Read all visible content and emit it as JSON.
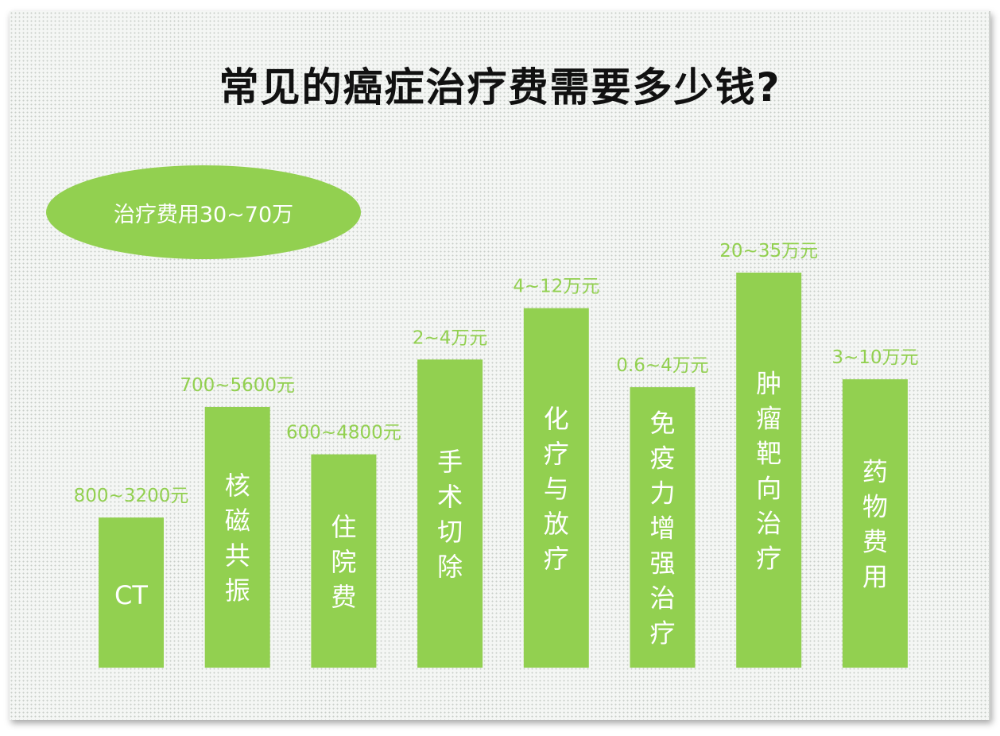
{
  "title": "常见的癌症治疗费需要多少钱?",
  "badge": "治疗费用30~70万",
  "colors": {
    "bar": "#92d050",
    "value_label": "#92d050",
    "bar_text": "#ffffff",
    "badge": "#92d050",
    "title": "#111111"
  },
  "chart_data": {
    "type": "bar",
    "title": "常见的癌症治疗费需要多少钱?",
    "categories": [
      "CT",
      "核磁共振",
      "住院费",
      "手术切除",
      "化疗与放疗",
      "免疫力增强治疗",
      "肿瘤靶向治疗",
      "药物费用"
    ],
    "value_labels": [
      "800~3200元",
      "700~5600元",
      "600~4800元",
      "2~4万元",
      "4~12万元",
      "0.6~4万元",
      "20~35万元",
      "3~10万元"
    ],
    "relative_heights": [
      0.38,
      0.66,
      0.54,
      0.78,
      0.91,
      0.71,
      1.0,
      0.73
    ],
    "xlabel": "",
    "ylabel": "",
    "grid": false,
    "legend": "none"
  }
}
